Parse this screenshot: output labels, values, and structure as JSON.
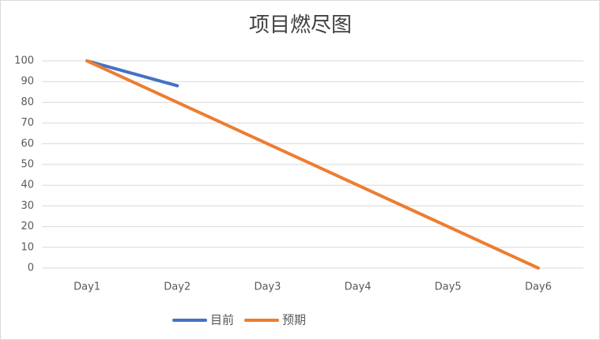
{
  "chart_data": {
    "type": "line",
    "title": "项目燃尽图",
    "categories": [
      "Day1",
      "Day2",
      "Day3",
      "Day4",
      "Day5",
      "Day6"
    ],
    "series": [
      {
        "name": "目前",
        "color": "#4472c4",
        "values": [
          100,
          88,
          null,
          null,
          null,
          null
        ]
      },
      {
        "name": "预期",
        "color": "#ed7d31",
        "values": [
          100,
          80,
          60,
          40,
          20,
          0
        ]
      }
    ],
    "ylim": [
      0,
      100
    ],
    "yticks": [
      0,
      10,
      20,
      30,
      40,
      50,
      60,
      70,
      80,
      90,
      100
    ],
    "grid": true,
    "legend": "bottom"
  }
}
